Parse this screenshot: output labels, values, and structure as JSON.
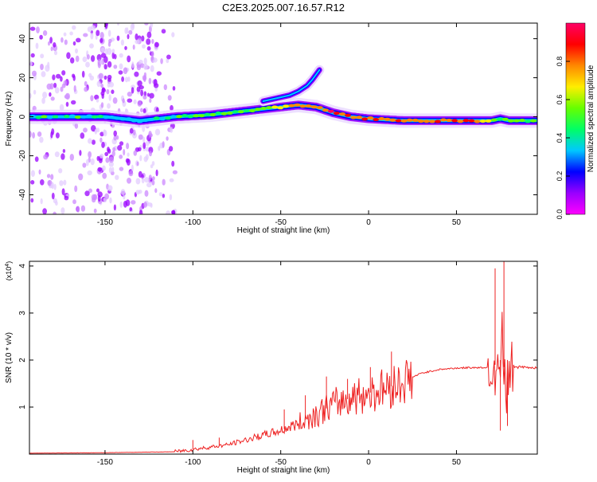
{
  "title": "C2E3.2025.007.16.57.R12",
  "colorbar": {
    "label": "Normalized spectral amplitude",
    "ticks": [
      "0.0",
      "0.2",
      "0.4",
      "0.6",
      "0.8"
    ]
  },
  "chart_data": [
    {
      "type": "heatmap",
      "xlabel": "Height of straight line (km)",
      "ylabel": "Frequency (Hz)",
      "xlim": [
        -193,
        96
      ],
      "ylim": [
        -50,
        48
      ],
      "xticks": [
        -150,
        -100,
        -50,
        0,
        50
      ],
      "yticks": [
        -40,
        -20,
        0,
        20,
        40
      ],
      "colorscale": [
        "#ff00ff",
        "#9900ff",
        "#0000ff",
        "#00c8ff",
        "#00ff66",
        "#66ff00",
        "#ffee00",
        "#ff8800",
        "#ff0000",
        "#ff0066"
      ],
      "zlim": [
        0,
        1
      ],
      "ridge": {
        "x": [
          -193,
          -170,
          -150,
          -130,
          -110,
          -90,
          -70,
          -50,
          -40,
          -30,
          -20,
          -10,
          0,
          20,
          40,
          60,
          70,
          75,
          80,
          96
        ],
        "freq": [
          0,
          0,
          0,
          -2,
          0,
          1,
          3,
          5,
          6,
          5,
          2,
          0,
          -1,
          -2,
          -2,
          -2,
          -2,
          -1,
          -2,
          -2
        ],
        "amplitude": [
          0.4,
          0.45,
          0.35,
          0.3,
          0.45,
          0.55,
          0.55,
          0.6,
          0.7,
          0.8,
          0.9,
          0.9,
          0.9,
          0.85,
          0.85,
          0.85,
          0.7,
          0.4,
          0.6,
          0.5
        ]
      },
      "upper_branch": {
        "x": [
          -60,
          -50,
          -45,
          -40,
          -35,
          -32,
          -28
        ],
        "freq": [
          8,
          10,
          11,
          13,
          16,
          19,
          24
        ]
      }
    },
    {
      "type": "line",
      "xlabel": "Height of straight line (km)",
      "ylabel": "SNR (10 * v/v)",
      "multiplier": "(x10",
      "multiplier_exponent": "4",
      "xlim": [
        -193,
        96
      ],
      "ylim": [
        0,
        4.1
      ],
      "xticks": [
        -150,
        -100,
        -50,
        0,
        50
      ],
      "yticks": [
        1,
        2,
        3,
        4
      ],
      "line_color": "#ee2222",
      "x": [
        -193,
        -150,
        -110,
        -100,
        -90,
        -80,
        -70,
        -60,
        -50,
        -40,
        -30,
        -20,
        -10,
        0,
        10,
        20,
        30,
        40,
        50,
        60,
        65,
        70,
        72,
        74,
        76,
        78,
        80,
        85,
        90,
        96
      ],
      "y": [
        0.02,
        0.03,
        0.05,
        0.1,
        0.15,
        0.2,
        0.3,
        0.4,
        0.5,
        0.65,
        0.85,
        1.05,
        1.2,
        1.3,
        1.4,
        1.55,
        1.72,
        1.8,
        1.83,
        1.84,
        1.84,
        1.85,
        1.9,
        1.5,
        2.5,
        1.2,
        1.9,
        1.85,
        1.84,
        1.84
      ],
      "spikes": [
        {
          "x": -100,
          "y": 0.3
        },
        {
          "x": -85,
          "y": 0.35
        },
        {
          "x": -60,
          "y": 0.45
        },
        {
          "x": -48,
          "y": 0.95
        },
        {
          "x": -36,
          "y": 1.25
        },
        {
          "x": -24,
          "y": 1.65
        },
        {
          "x": -12,
          "y": 1.6
        },
        {
          "x": 1,
          "y": 1.85
        },
        {
          "x": 13,
          "y": 2.18
        },
        {
          "x": 72,
          "y": 3.95
        },
        {
          "x": 75,
          "y": 0.5
        },
        {
          "x": 77,
          "y": 4.1
        },
        {
          "x": 79,
          "y": 0.6
        }
      ]
    }
  ]
}
